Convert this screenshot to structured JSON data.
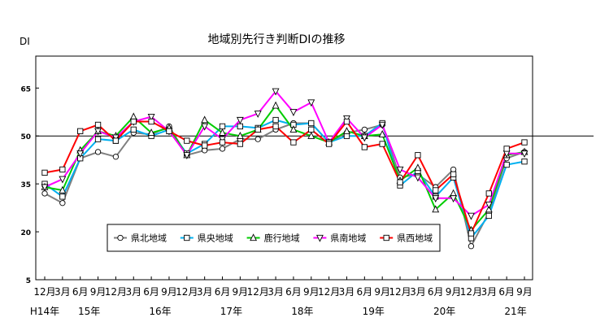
{
  "chart_data": {
    "type": "line",
    "title": "地域別先行き判断DIの推移",
    "ylabel": "DI",
    "ylim": [
      5,
      75
    ],
    "yticks": [
      5,
      20,
      35,
      50,
      65
    ],
    "reference_line": 50,
    "grid": false,
    "legend_position": "bottom-center inside plot",
    "x": [
      "12月",
      "3月",
      "6月",
      "9月",
      "12月",
      "3月",
      "6月",
      "9月",
      "12月",
      "3月",
      "6月",
      "9月",
      "12月",
      "3月",
      "6月",
      "9月",
      "12月",
      "3月",
      "6月",
      "9月",
      "12月",
      "3月",
      "6月",
      "9月",
      "12月",
      "3月",
      "6月",
      "9月"
    ],
    "year_labels": [
      {
        "label": "H14年",
        "index": 0
      },
      {
        "label": "15年",
        "index": 2.5
      },
      {
        "label": "16年",
        "index": 6.5
      },
      {
        "label": "17年",
        "index": 10.5
      },
      {
        "label": "18年",
        "index": 14.5
      },
      {
        "label": "19年",
        "index": 18.5
      },
      {
        "label": "20年",
        "index": 22.5
      },
      {
        "label": "21年",
        "index": 26.5
      }
    ],
    "series": [
      {
        "name": "県北地域",
        "color": "#7f7f7f",
        "marker": "circle",
        "values": [
          32,
          29,
          43,
          45,
          43.5,
          51,
          50.5,
          53,
          44,
          45.5,
          46,
          49,
          49,
          52,
          54,
          54,
          48,
          51,
          52,
          53.5,
          37,
          38,
          34,
          39.5,
          15.5,
          26,
          43,
          45
        ]
      },
      {
        "name": "県央地域",
        "color": "#00b0f0",
        "marker": "square",
        "values": [
          35,
          31,
          43,
          49,
          48.5,
          52,
          50,
          52,
          44.5,
          47.5,
          53,
          53,
          52.5,
          55,
          53.5,
          54,
          48,
          50,
          50,
          54,
          34.5,
          39,
          31,
          37,
          18,
          25,
          41,
          42
        ]
      },
      {
        "name": "鹿行地域",
        "color": "#00cc00",
        "marker": "triangle-up",
        "values": [
          34,
          33,
          45.5,
          51.5,
          50,
          56,
          51,
          52.5,
          44,
          55,
          51,
          50,
          52,
          59.5,
          52,
          50,
          48,
          51.5,
          50,
          50.5,
          36,
          40,
          27,
          32,
          20.5,
          27,
          44,
          45
        ]
      },
      {
        "name": "県南地域",
        "color": "#ff00ff",
        "marker": "triangle-down",
        "values": [
          34,
          36.5,
          44.5,
          51.5,
          49.5,
          54.5,
          56,
          51.5,
          44,
          53,
          49,
          55,
          57,
          64,
          57.5,
          60.5,
          48,
          55.5,
          49.5,
          53.5,
          39.5,
          37,
          30.5,
          30.5,
          25,
          28.5,
          44.5,
          44.5
        ]
      },
      {
        "name": "県西地域",
        "color": "#ff0000",
        "marker": "square",
        "values": [
          38.5,
          39.5,
          51.5,
          53.5,
          48.5,
          54.5,
          54.5,
          51.5,
          48.5,
          47,
          48,
          47.5,
          52,
          53,
          48,
          52,
          47.5,
          54.5,
          46.5,
          47.5,
          35.5,
          44,
          33,
          38,
          19.5,
          32,
          46,
          48
        ]
      }
    ]
  }
}
